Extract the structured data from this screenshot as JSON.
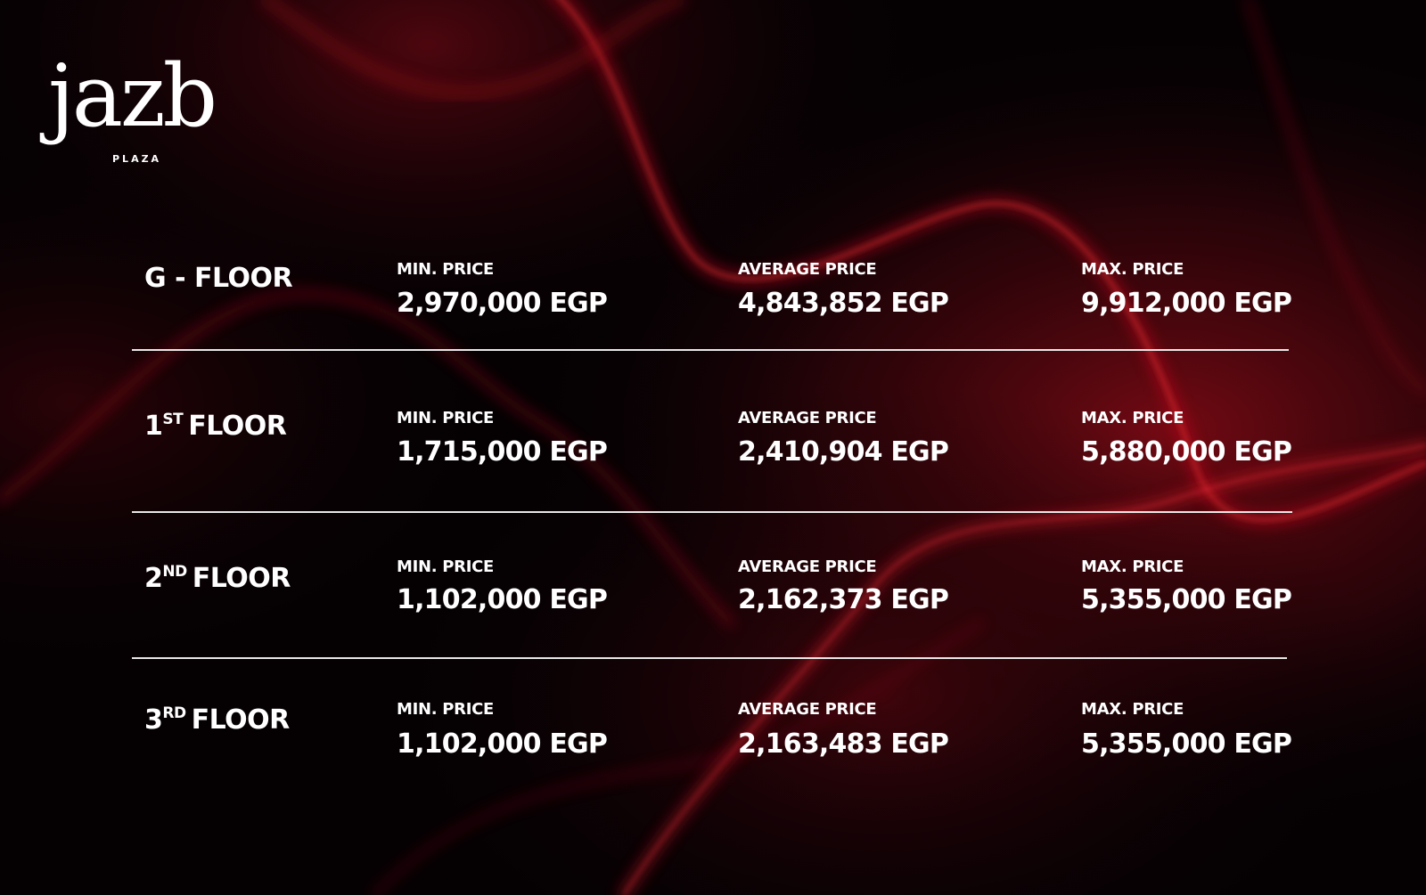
{
  "brand": {
    "name": "jazb",
    "subtitle": "PLAZA"
  },
  "colors": {
    "background": "#050103",
    "accent": "#b0101c",
    "text": "#ffffff"
  },
  "rows": [
    {
      "floor": {
        "prefix": "G - FLOOR",
        "sup": "",
        "suffix": ""
      },
      "min": {
        "label": "MIN. PRICE",
        "value": "2,970,000 EGP"
      },
      "avg": {
        "label": "AVERAGE PRICE",
        "value": "4,843,852 EGP"
      },
      "max": {
        "label": "MAX. PRICE",
        "value": "9,912,000 EGP"
      }
    },
    {
      "floor": {
        "prefix": "1",
        "sup": "ST",
        "suffix": "FLOOR"
      },
      "min": {
        "label": "MIN. PRICE",
        "value": "1,715,000 EGP"
      },
      "avg": {
        "label": "AVERAGE PRICE",
        "value": "2,410,904 EGP"
      },
      "max": {
        "label": "MAX. PRICE",
        "value": "5,880,000 EGP"
      }
    },
    {
      "floor": {
        "prefix": "2",
        "sup": "ND",
        "suffix": "FLOOR"
      },
      "min": {
        "label": "MIN. PRICE",
        "value": "1,102,000 EGP"
      },
      "avg": {
        "label": "AVERAGE PRICE",
        "value": "2,162,373 EGP"
      },
      "max": {
        "label": "MAX. PRICE",
        "value": "5,355,000 EGP"
      }
    },
    {
      "floor": {
        "prefix": "3",
        "sup": "RD",
        "suffix": "FLOOR"
      },
      "min": {
        "label": "MIN. PRICE",
        "value": "1,102,000 EGP"
      },
      "avg": {
        "label": "AVERAGE PRICE",
        "value": "2,163,483 EGP"
      },
      "max": {
        "label": "MAX. PRICE",
        "value": "5,355,000 EGP"
      }
    }
  ]
}
